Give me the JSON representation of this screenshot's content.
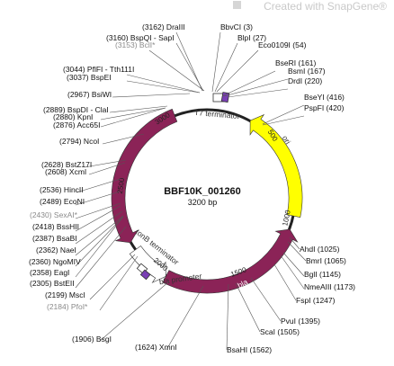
{
  "watermark": {
    "text": "Created with SnapGene®"
  },
  "plasmid": {
    "name": "BBF10K_001260",
    "size_label": "3200 bp",
    "length": 3200
  },
  "colors": {
    "backbone": "#222222",
    "feature_purple": "#8b2357",
    "feature_yellow": "#ffff00",
    "promoter_white": "#ffffff"
  },
  "features": [
    {
      "name": "Mlt027",
      "start": 2130,
      "end": 3010,
      "color": "#8b2357",
      "direction": "reverse",
      "text_color": "white"
    },
    {
      "name": "ori",
      "start": 260,
      "end": 905,
      "color": "#ffff00",
      "direction": "reverse",
      "text_color": "dark"
    },
    {
      "name": "bla",
      "start": 985,
      "end": 1845,
      "color": "#8b2357",
      "direction": "reverse",
      "text_color": "white"
    },
    {
      "name": "bla promoter",
      "start": 1845,
      "end": 2080,
      "color": "#ffffff",
      "direction": "reverse",
      "text_color": "dark"
    }
  ],
  "tick_labels": [
    "500",
    "1000",
    "1500",
    "2000",
    "2500",
    "3000"
  ],
  "annotations": [
    "T7 terminator",
    "tonB terminator"
  ],
  "sites": [
    {
      "label": "(3162)  DraIII",
      "gray": false
    },
    {
      "label": "BbvCI  (3)",
      "gray": false
    },
    {
      "label": "(3160)  BspQI - SapI",
      "gray": false
    },
    {
      "label": "BlpI  (27)",
      "gray": false
    },
    {
      "label": "(3153)  BclI*",
      "gray": true
    },
    {
      "label": "Eco0109I  (54)",
      "gray": false
    },
    {
      "label": "(3044)  PflFI - Tth111I",
      "gray": false
    },
    {
      "label": "BseRI  (161)",
      "gray": false
    },
    {
      "label": "(3037)  BspEI",
      "gray": false
    },
    {
      "label": "BsmI  (167)",
      "gray": false
    },
    {
      "label": "(2967)  BsiWI",
      "gray": false
    },
    {
      "label": "DrdI  (220)",
      "gray": false
    },
    {
      "label": "(2889)  BspDI - ClaI",
      "gray": false
    },
    {
      "label": "BseYI  (416)",
      "gray": false
    },
    {
      "label": "(2880)  KpnI",
      "gray": false
    },
    {
      "label": "PspFI  (420)",
      "gray": false
    },
    {
      "label": "(2876)  Acc65I",
      "gray": false
    },
    {
      "label": "(2794)  NcoI",
      "gray": false
    },
    {
      "label": "(2628)  BstZ17I",
      "gray": false
    },
    {
      "label": "(2608)  XcmI",
      "gray": false
    },
    {
      "label": "(2536)  HincII",
      "gray": false
    },
    {
      "label": "(2489)  EcoNI",
      "gray": false
    },
    {
      "label": "(2430)  SexAI*",
      "gray": true
    },
    {
      "label": "(2418)  BssHII",
      "gray": false
    },
    {
      "label": "(2387)  BsaBI",
      "gray": false
    },
    {
      "label": "(2362)  NaeI",
      "gray": false
    },
    {
      "label": "(2360)  NgoMIV",
      "gray": false
    },
    {
      "label": "(2358)  EagI",
      "gray": false
    },
    {
      "label": "(2305)  BstEII",
      "gray": false
    },
    {
      "label": "AhdI  (1025)",
      "gray": false
    },
    {
      "label": "BmrI  (1065)",
      "gray": false
    },
    {
      "label": "(2199)  MscI",
      "gray": false
    },
    {
      "label": "BglI  (1145)",
      "gray": false
    },
    {
      "label": "(2184)  PfoI*",
      "gray": true
    },
    {
      "label": "NmeAIII  (1173)",
      "gray": false
    },
    {
      "label": "FspI  (1247)",
      "gray": false
    },
    {
      "label": "(1906)  BsgI",
      "gray": false
    },
    {
      "label": "PvuI  (1395)",
      "gray": false
    },
    {
      "label": "ScaI  (1505)",
      "gray": false
    },
    {
      "label": "(1624)  XmnI",
      "gray": false
    },
    {
      "label": "BsaHI  (1562)",
      "gray": false
    }
  ]
}
